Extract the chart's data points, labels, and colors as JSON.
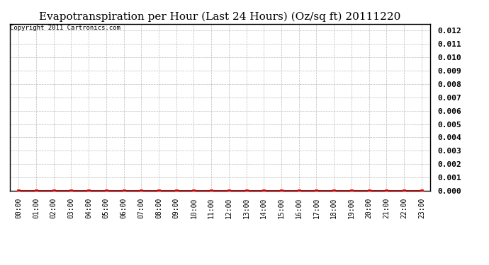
{
  "title": "Evapotranspiration per Hour (Last 24 Hours) (Oz/sq ft) 20111220",
  "copyright_text": "Copyright 2011 Cartronics.com",
  "x_labels": [
    "00:00",
    "01:00",
    "02:00",
    "03:00",
    "04:00",
    "05:00",
    "06:00",
    "07:00",
    "08:00",
    "09:00",
    "10:00",
    "11:00",
    "12:00",
    "13:00",
    "14:00",
    "15:00",
    "16:00",
    "17:00",
    "18:00",
    "19:00",
    "20:00",
    "21:00",
    "22:00",
    "23:00"
  ],
  "y_values": [
    0,
    0,
    0,
    0,
    0,
    0,
    0,
    0,
    0,
    0,
    0,
    0,
    0,
    0,
    0,
    0,
    0,
    0,
    0,
    0,
    0,
    0,
    0,
    0
  ],
  "ylim": [
    0,
    0.0125
  ],
  "yticks": [
    0.0,
    0.001,
    0.002,
    0.003,
    0.004,
    0.005,
    0.006,
    0.007,
    0.008,
    0.009,
    0.01,
    0.011,
    0.012
  ],
  "line_color": "#dd0000",
  "marker_color": "#dd0000",
  "bg_color": "#ffffff",
  "plot_bg_color": "#ffffff",
  "grid_color": "#bbbbbb",
  "title_fontsize": 11,
  "copyright_fontsize": 6.5,
  "tick_fontsize": 7,
  "ytick_fontsize": 8,
  "marker": "s",
  "marker_size": 2.5,
  "line_width": 1.5
}
